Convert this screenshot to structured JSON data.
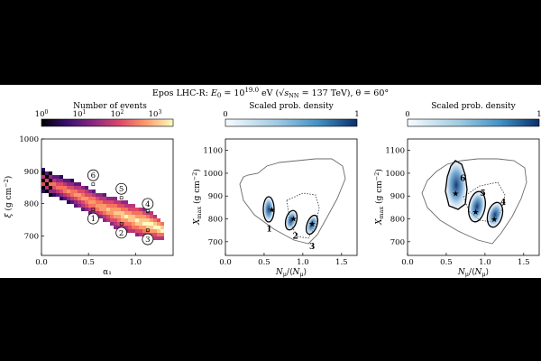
{
  "title": {
    "model": "Epos LHC-R",
    "energy_label": "E",
    "energy_sub": "0",
    "energy_eq": " = 10",
    "energy_exp": "19.0",
    "energy_unit": " eV (",
    "sqrt_label": "√s",
    "sqrt_sub": "NN",
    "sqrt_value": " = 137 TeV), θ = 60°"
  },
  "chart_data": [
    {
      "type": "heatmap",
      "colorbar": {
        "title": "Number of events",
        "scale": "log",
        "ticks": [
          "10",
          "10",
          "10",
          "10"
        ],
        "tick_exps": [
          "0",
          "1",
          "2",
          "3"
        ],
        "range": [
          1,
          3000
        ]
      },
      "xlabel": "α₁",
      "ylabel": "ξ (g cm⁻²)",
      "xlim": [
        0.0,
        1.4
      ],
      "ylim": [
        640,
        1000
      ],
      "xticks": [
        "0.0",
        "0.5",
        "1.0"
      ],
      "yticks": [
        "700",
        "800",
        "900",
        "1000"
      ],
      "band": [
        {
          "x": 0.0,
          "ymin": 840,
          "ymax": 905
        },
        {
          "x": 0.2,
          "ymin": 820,
          "ymax": 880
        },
        {
          "x": 0.4,
          "ymin": 790,
          "ymax": 860
        },
        {
          "x": 0.6,
          "ymin": 760,
          "ymax": 830
        },
        {
          "x": 0.8,
          "ymin": 730,
          "ymax": 810
        },
        {
          "x": 1.0,
          "ymin": 710,
          "ymax": 790
        },
        {
          "x": 1.15,
          "ymin": 700,
          "ymax": 770
        },
        {
          "x": 1.3,
          "ymin": 695,
          "ymax": 740
        }
      ],
      "markers": [
        {
          "label": "1",
          "x": 0.55,
          "y": 782
        },
        {
          "label": "2",
          "x": 0.85,
          "y": 738
        },
        {
          "label": "3",
          "x": 1.13,
          "y": 718
        },
        {
          "label": "4",
          "x": 1.13,
          "y": 777
        },
        {
          "label": "5",
          "x": 0.85,
          "y": 818
        },
        {
          "label": "6",
          "x": 0.55,
          "y": 860
        }
      ]
    },
    {
      "type": "contour",
      "colorbar": {
        "title": "Scaled prob. density",
        "ticks": [
          "0",
          "1"
        ],
        "range": [
          0,
          1
        ]
      },
      "xlabel": "N_μ/⟨N_μ⟩",
      "ylabel": "X_max (g cm⁻²)",
      "xlim": [
        0.0,
        1.7
      ],
      "ylim": [
        640,
        1150
      ],
      "xticks": [
        "0.0",
        "0.5",
        "1.0",
        "1.5"
      ],
      "yticks": [
        "700",
        "800",
        "900",
        "1000",
        "1100"
      ],
      "clusters": [
        {
          "label": "1",
          "x": 0.6,
          "y": 840
        },
        {
          "label": "2",
          "x": 0.88,
          "y": 800
        },
        {
          "label": "3",
          "x": 1.12,
          "y": 778
        }
      ]
    },
    {
      "type": "contour",
      "colorbar": {
        "title": "Scaled prob. density",
        "ticks": [
          "0",
          "1"
        ],
        "range": [
          0,
          1
        ]
      },
      "xlabel": "N_μ/⟨N_μ⟩",
      "ylabel": "X_max (g cm⁻²)",
      "xlim": [
        0.0,
        1.7
      ],
      "ylim": [
        640,
        1150
      ],
      "xticks": [
        "0.0",
        "0.5",
        "1.0",
        "1.5"
      ],
      "yticks": [
        "700",
        "800",
        "900",
        "1000",
        "1100"
      ],
      "clusters": [
        {
          "label": "6",
          "x": 0.62,
          "y": 910
        },
        {
          "label": "5",
          "x": 0.88,
          "y": 830
        },
        {
          "label": "4",
          "x": 1.12,
          "y": 798
        }
      ]
    }
  ],
  "panels": [
    {
      "colorbar": {
        "title": "Number of events"
      },
      "xlabel": "α₁"
    },
    {
      "colorbar": {
        "title": "Scaled prob. density"
      }
    },
    {
      "colorbar": {
        "title": "Scaled prob. density"
      }
    }
  ]
}
